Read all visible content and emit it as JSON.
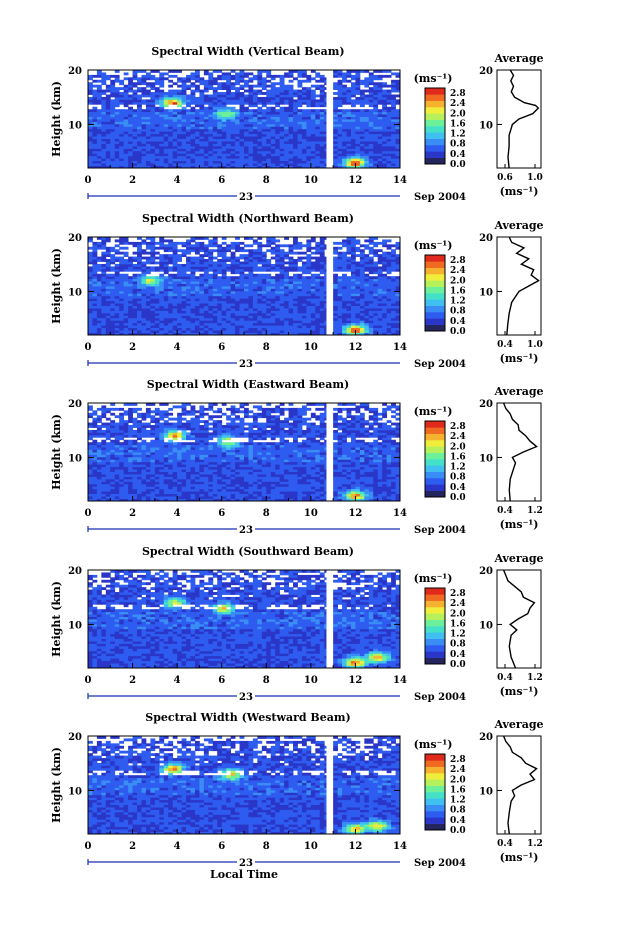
{
  "colors": {
    "scale": [
      "#25255e",
      "#2a36c8",
      "#2f5cf0",
      "#3a8df5",
      "#3fc0f0",
      "#45e0c8",
      "#6df09a",
      "#b6f05a",
      "#f0ee3c",
      "#f5b22e",
      "#f06a22",
      "#e02a1c"
    ],
    "accent": "#1a2fb0",
    "background": "#ffffff"
  },
  "panels": [
    {
      "title": "Spectral Width (Vertical Beam)",
      "colorbar_unit": "(ms⁻¹)",
      "colorbar_ticks": [
        "2.8",
        "2.4",
        "2.0",
        "1.6",
        "1.2",
        "0.8",
        "0.4",
        "0.0"
      ],
      "y_ticks": [
        "20",
        "10"
      ],
      "x_ticks": [
        "0",
        "2",
        "4",
        "6",
        "8",
        "10",
        "12",
        "14"
      ],
      "date_day": "23",
      "date_month_year": "Sep 2004",
      "avg_title": "Average",
      "avg_y_ticks": [
        "20",
        "10"
      ],
      "avg_x_ticks": [
        "0.6",
        "1.0"
      ],
      "avg_unit": "(ms⁻¹)"
    },
    {
      "title": "Spectral Width (Northward Beam)",
      "colorbar_unit": "(ms⁻¹)",
      "colorbar_ticks": [
        "2.8",
        "2.4",
        "2.0",
        "1.6",
        "1.2",
        "0.8",
        "0.4",
        "0.0"
      ],
      "y_ticks": [
        "20",
        "10"
      ],
      "x_ticks": [
        "0",
        "2",
        "4",
        "6",
        "8",
        "10",
        "12",
        "14"
      ],
      "date_day": "23",
      "date_month_year": "Sep 2004",
      "avg_title": "Average",
      "avg_y_ticks": [
        "20",
        "10"
      ],
      "avg_x_ticks": [
        "0.4",
        "1.0"
      ],
      "avg_unit": "(ms⁻¹)"
    },
    {
      "title": "Spectral Width (Eastward Beam)",
      "colorbar_unit": "(ms⁻¹)",
      "colorbar_ticks": [
        "2.8",
        "2.4",
        "2.0",
        "1.6",
        "1.2",
        "0.8",
        "0.4",
        "0.0"
      ],
      "y_ticks": [
        "20",
        "10"
      ],
      "x_ticks": [
        "0",
        "2",
        "4",
        "6",
        "8",
        "10",
        "12",
        "14"
      ],
      "date_day": "23",
      "date_month_year": "Sep 2004",
      "avg_title": "Average",
      "avg_y_ticks": [
        "20",
        "10"
      ],
      "avg_x_ticks": [
        "0.4",
        "1.2"
      ],
      "avg_unit": "(ms⁻¹)"
    },
    {
      "title": "Spectral Width (Southward Beam)",
      "colorbar_unit": "(ms⁻¹)",
      "colorbar_ticks": [
        "2.8",
        "2.4",
        "2.0",
        "1.6",
        "1.2",
        "0.8",
        "0.4",
        "0.0"
      ],
      "y_ticks": [
        "20",
        "10"
      ],
      "x_ticks": [
        "0",
        "2",
        "4",
        "6",
        "8",
        "10",
        "12",
        "14"
      ],
      "date_day": "23",
      "date_month_year": "Sep 2004",
      "avg_title": "Average",
      "avg_y_ticks": [
        "20",
        "10"
      ],
      "avg_x_ticks": [
        "0.4",
        "1.2"
      ],
      "avg_unit": "(ms⁻¹)"
    },
    {
      "title": "Spectral Width (Westward Beam)",
      "colorbar_unit": "(ms⁻¹)",
      "colorbar_ticks": [
        "2.8",
        "2.4",
        "2.0",
        "1.6",
        "1.2",
        "0.8",
        "0.4",
        "0.0"
      ],
      "y_ticks": [
        "20",
        "10"
      ],
      "x_ticks": [
        "0",
        "2",
        "4",
        "6",
        "8",
        "10",
        "12",
        "14"
      ],
      "date_day": "23",
      "date_month_year": "Sep 2004",
      "avg_title": "Average",
      "avg_y_ticks": [
        "20",
        "10"
      ],
      "avg_x_ticks": [
        "0.4",
        "1.2"
      ],
      "avg_unit": "(ms⁻¹)"
    }
  ],
  "y_label": "Height (km)",
  "x_label": "Local Time",
  "chart_data": [
    {
      "type": "heatmap",
      "title": "Spectral Width (Vertical Beam)",
      "xlabel": "",
      "ylabel": "Height (km)",
      "xlim": [
        0,
        14
      ],
      "ylim": [
        2,
        20
      ],
      "zlim": [
        0.0,
        3.0
      ],
      "z_unit": "ms⁻¹",
      "data_gap_x": [
        10.7,
        10.95
      ],
      "features": [
        {
          "x": 3.8,
          "y": 14,
          "value": 2.8
        },
        {
          "x": 12,
          "y": 3,
          "value": 3.0
        },
        {
          "x": 6.2,
          "y": 12,
          "value": 1.8
        }
      ],
      "average_profile": {
        "xlim": [
          0.4,
          1.2
        ],
        "height": [
          2,
          4,
          6,
          8,
          10,
          11,
          12,
          13,
          13.5,
          14,
          15,
          16,
          17,
          18,
          19,
          20
        ],
        "value": [
          0.62,
          0.6,
          0.62,
          0.62,
          0.68,
          0.8,
          1.05,
          1.15,
          1.1,
          0.9,
          0.72,
          0.66,
          0.7,
          0.65,
          0.7,
          0.64
        ]
      }
    },
    {
      "type": "heatmap",
      "title": "Spectral Width (Northward Beam)",
      "xlabel": "",
      "ylabel": "Height (km)",
      "xlim": [
        0,
        14
      ],
      "ylim": [
        2,
        20
      ],
      "zlim": [
        0.0,
        3.0
      ],
      "z_unit": "ms⁻¹",
      "data_gap_x": [
        10.7,
        10.95
      ],
      "features": [
        {
          "x": 12,
          "y": 3,
          "value": 3.0
        },
        {
          "x": 2.8,
          "y": 12,
          "value": 2.0
        }
      ],
      "average_profile": {
        "xlim": [
          0.3,
          1.2
        ],
        "height": [
          2,
          4,
          6,
          8,
          10,
          11,
          12,
          13,
          14,
          15,
          16,
          17,
          18,
          19,
          20
        ],
        "value": [
          0.5,
          0.52,
          0.55,
          0.6,
          0.75,
          0.95,
          1.15,
          1.0,
          1.05,
          0.8,
          0.95,
          0.7,
          0.85,
          0.6,
          0.55
        ]
      }
    },
    {
      "type": "heatmap",
      "title": "Spectral Width (Eastward Beam)",
      "xlabel": "",
      "ylabel": "Height (km)",
      "xlim": [
        0,
        14
      ],
      "ylim": [
        2,
        20
      ],
      "zlim": [
        0.0,
        3.0
      ],
      "z_unit": "ms⁻¹",
      "data_gap_x": [
        10.7,
        10.95
      ],
      "features": [
        {
          "x": 3.9,
          "y": 14,
          "value": 2.6
        },
        {
          "x": 6.3,
          "y": 13,
          "value": 2.2
        },
        {
          "x": 12,
          "y": 3,
          "value": 2.6
        }
      ],
      "average_profile": {
        "xlim": [
          0.3,
          1.3
        ],
        "height": [
          2,
          4,
          6,
          8,
          9,
          10,
          11,
          12,
          13,
          14,
          15,
          16,
          17,
          18,
          19,
          20
        ],
        "value": [
          0.6,
          0.58,
          0.6,
          0.68,
          0.72,
          0.65,
          0.9,
          1.2,
          1.05,
          0.95,
          0.8,
          0.78,
          0.65,
          0.6,
          0.5,
          0.45
        ]
      }
    },
    {
      "type": "heatmap",
      "title": "Spectral Width (Southward Beam)",
      "xlabel": "",
      "ylabel": "Height (km)",
      "xlim": [
        0,
        14
      ],
      "ylim": [
        2,
        20
      ],
      "zlim": [
        0.0,
        3.0
      ],
      "z_unit": "ms⁻¹",
      "data_gap_x": [
        10.7,
        10.95
      ],
      "features": [
        {
          "x": 3.9,
          "y": 14,
          "value": 2.2
        },
        {
          "x": 6.1,
          "y": 13,
          "value": 2.4
        },
        {
          "x": 12,
          "y": 3,
          "value": 2.8
        },
        {
          "x": 13,
          "y": 4,
          "value": 2.6
        }
      ],
      "average_profile": {
        "xlim": [
          0.3,
          1.3
        ],
        "height": [
          2,
          4,
          6,
          8,
          9,
          10,
          11,
          12,
          13,
          14,
          15,
          16,
          17,
          18,
          19,
          20
        ],
        "value": [
          0.72,
          0.62,
          0.58,
          0.62,
          0.75,
          0.6,
          0.78,
          1.0,
          1.05,
          1.15,
          0.9,
          0.85,
          0.7,
          0.55,
          0.5,
          0.45
        ]
      }
    },
    {
      "type": "heatmap",
      "title": "Spectral Width (Westward Beam)",
      "xlabel": "Local Time",
      "ylabel": "Height (km)",
      "xlim": [
        0,
        14
      ],
      "ylim": [
        2,
        20
      ],
      "zlim": [
        0.0,
        3.0
      ],
      "z_unit": "ms⁻¹",
      "data_gap_x": [
        10.7,
        10.95
      ],
      "features": [
        {
          "x": 3.8,
          "y": 14,
          "value": 2.6
        },
        {
          "x": 6.4,
          "y": 13,
          "value": 2.4
        },
        {
          "x": 12,
          "y": 3,
          "value": 2.6
        },
        {
          "x": 13,
          "y": 3.5,
          "value": 2.4
        }
      ],
      "average_profile": {
        "xlim": [
          0.3,
          1.3
        ],
        "height": [
          2,
          4,
          6,
          8,
          9,
          10,
          11,
          12,
          13,
          14,
          15,
          16,
          17,
          18,
          19,
          20
        ],
        "value": [
          0.58,
          0.55,
          0.58,
          0.62,
          0.7,
          0.65,
          0.85,
          1.15,
          1.05,
          1.2,
          0.95,
          0.85,
          0.65,
          0.6,
          0.5,
          0.45
        ]
      }
    }
  ]
}
